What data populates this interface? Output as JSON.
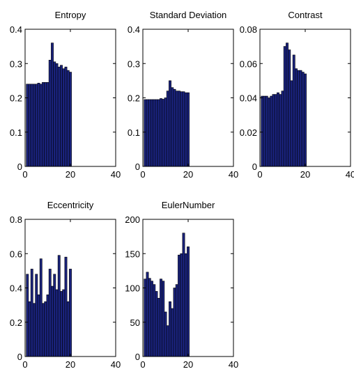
{
  "chart_data": [
    {
      "type": "bar",
      "title": "Entropy",
      "xlabel": "",
      "ylabel": "",
      "xlim": [
        0,
        40
      ],
      "ylim": [
        0,
        0.4
      ],
      "xticks": [
        "0",
        "20",
        "40"
      ],
      "yticks": [
        "0",
        "0.1",
        "0.2",
        "0.3",
        "0.4"
      ],
      "bar_color": "#1a237e",
      "x": [
        1,
        2,
        3,
        4,
        5,
        6,
        7,
        8,
        9,
        10,
        11,
        12,
        13,
        14,
        15,
        16,
        17,
        18,
        19,
        20
      ],
      "values": [
        0.24,
        0.24,
        0.24,
        0.24,
        0.24,
        0.243,
        0.24,
        0.245,
        0.245,
        0.245,
        0.31,
        0.36,
        0.305,
        0.3,
        0.29,
        0.295,
        0.285,
        0.29,
        0.28,
        0.275
      ]
    },
    {
      "type": "bar",
      "title": "Standard Deviation",
      "xlabel": "",
      "ylabel": "",
      "xlim": [
        0,
        40
      ],
      "ylim": [
        0,
        0.4
      ],
      "xticks": [
        "0",
        "20",
        "40"
      ],
      "yticks": [
        "0",
        "0.1",
        "0.2",
        "0.3",
        "0.4"
      ],
      "bar_color": "#1a237e",
      "x": [
        1,
        2,
        3,
        4,
        5,
        6,
        7,
        8,
        9,
        10,
        11,
        12,
        13,
        14,
        15,
        16,
        17,
        18,
        19,
        20
      ],
      "values": [
        0.195,
        0.195,
        0.195,
        0.195,
        0.195,
        0.195,
        0.195,
        0.198,
        0.196,
        0.2,
        0.22,
        0.25,
        0.23,
        0.225,
        0.22,
        0.22,
        0.218,
        0.218,
        0.215,
        0.215
      ]
    },
    {
      "type": "bar",
      "title": "Contrast",
      "xlabel": "",
      "ylabel": "",
      "xlim": [
        0,
        40
      ],
      "ylim": [
        0,
        0.08
      ],
      "xticks": [
        "0",
        "20",
        "40"
      ],
      "yticks": [
        "0",
        "0.02",
        "0.04",
        "0.06",
        "0.08"
      ],
      "bar_color": "#1a237e",
      "x": [
        1,
        2,
        3,
        4,
        5,
        6,
        7,
        8,
        9,
        10,
        11,
        12,
        13,
        14,
        15,
        16,
        17,
        18,
        19,
        20
      ],
      "values": [
        0.041,
        0.041,
        0.041,
        0.04,
        0.041,
        0.042,
        0.042,
        0.043,
        0.042,
        0.044,
        0.07,
        0.072,
        0.068,
        0.05,
        0.065,
        0.057,
        0.056,
        0.056,
        0.055,
        0.054
      ]
    },
    {
      "type": "bar",
      "title": "Eccentricity",
      "xlabel": "",
      "ylabel": "",
      "xlim": [
        0,
        40
      ],
      "ylim": [
        0,
        0.8
      ],
      "xticks": [
        "0",
        "20",
        "40"
      ],
      "yticks": [
        "0",
        "0.2",
        "0.4",
        "0.6",
        "0.8"
      ],
      "bar_color": "#1a237e",
      "x": [
        1,
        2,
        3,
        4,
        5,
        6,
        7,
        8,
        9,
        10,
        11,
        12,
        13,
        14,
        15,
        16,
        17,
        18,
        19,
        20
      ],
      "values": [
        0.48,
        0.32,
        0.51,
        0.31,
        0.48,
        0.36,
        0.57,
        0.31,
        0.32,
        0.36,
        0.51,
        0.41,
        0.48,
        0.39,
        0.59,
        0.38,
        0.39,
        0.58,
        0.32,
        0.51
      ]
    },
    {
      "type": "bar",
      "title": "EulerNumber",
      "xlabel": "",
      "ylabel": "",
      "xlim": [
        0,
        40
      ],
      "ylim": [
        0,
        200
      ],
      "xticks": [
        "0",
        "20",
        "40"
      ],
      "yticks": [
        "0",
        "50",
        "100",
        "150",
        "200"
      ],
      "bar_color": "#1a237e",
      "x": [
        1,
        2,
        3,
        4,
        5,
        6,
        7,
        8,
        9,
        10,
        11,
        12,
        13,
        14,
        15,
        16,
        17,
        18,
        19,
        20
      ],
      "values": [
        113,
        123,
        114,
        110,
        105,
        95,
        85,
        113,
        110,
        65,
        45,
        80,
        70,
        100,
        105,
        148,
        150,
        180,
        150,
        160
      ]
    }
  ]
}
